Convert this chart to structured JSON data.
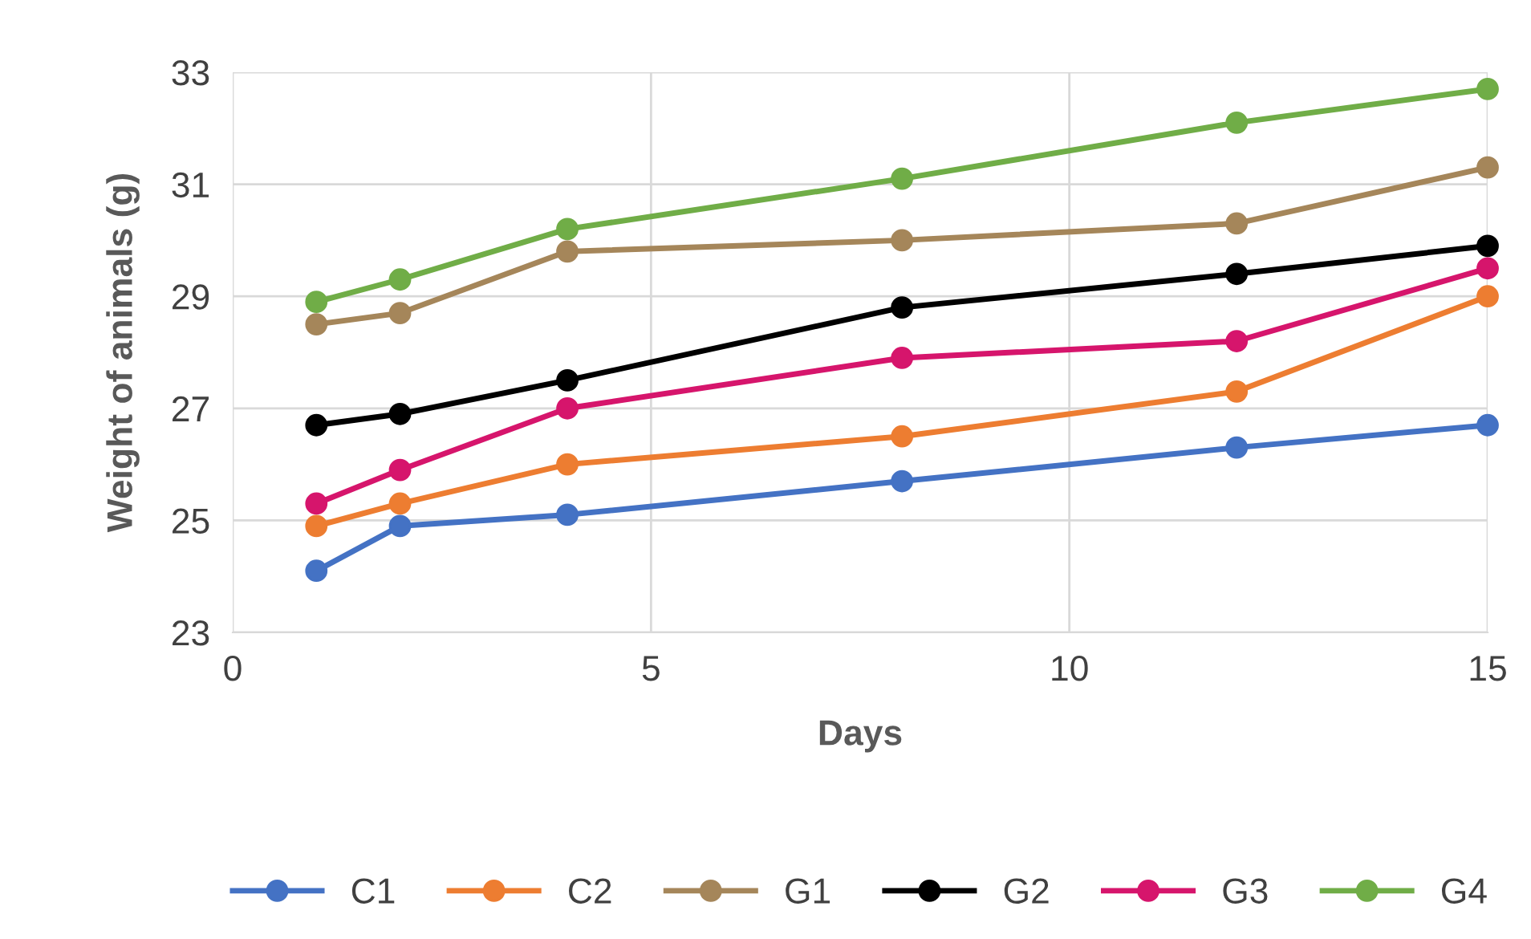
{
  "chart_data": {
    "type": "line",
    "xlabel": "Days",
    "ylabel": "Weight of animals (g)",
    "x": [
      1,
      2,
      4,
      8,
      12,
      15
    ],
    "series": [
      {
        "name": "C1",
        "color": "#4472c4",
        "values": [
          24.1,
          24.9,
          25.1,
          25.7,
          26.3,
          26.7
        ]
      },
      {
        "name": "C2",
        "color": "#ed7d31",
        "values": [
          24.9,
          25.3,
          26.0,
          26.5,
          27.3,
          29.0
        ]
      },
      {
        "name": "G1",
        "color": "#a5865a",
        "values": [
          28.5,
          28.7,
          29.8,
          30.0,
          30.3,
          31.3
        ]
      },
      {
        "name": "G2",
        "color": "#000000",
        "values": [
          26.7,
          26.9,
          27.5,
          28.8,
          29.4,
          29.9
        ]
      },
      {
        "name": "G3",
        "color": "#d6156c",
        "values": [
          25.3,
          25.9,
          27.0,
          27.9,
          28.2,
          29.5
        ]
      },
      {
        "name": "G4",
        "color": "#70ad47",
        "values": [
          28.9,
          29.3,
          30.2,
          31.1,
          32.1,
          32.7
        ]
      }
    ],
    "xlim": [
      0,
      15
    ],
    "xticks": [
      0,
      5,
      10,
      15
    ],
    "ylim": [
      23,
      33
    ],
    "yticks": [
      23,
      25,
      27,
      29,
      31,
      33
    ],
    "grid": true,
    "legend": "bottom",
    "marker": "circle",
    "line_style": "solid"
  }
}
